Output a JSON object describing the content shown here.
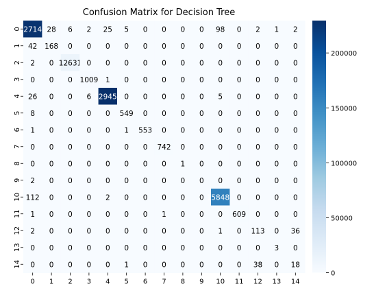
{
  "chart_data": {
    "type": "heatmap",
    "title": "Confusion Matrix for Decision Tree",
    "xlabel": "",
    "ylabel": "",
    "x_categories": [
      "0",
      "1",
      "2",
      "3",
      "4",
      "5",
      "6",
      "7",
      "8",
      "9",
      "10",
      "11",
      "12",
      "13",
      "14"
    ],
    "y_categories": [
      "0",
      "1",
      "2",
      "3",
      "4",
      "5",
      "6",
      "7",
      "8",
      "9",
      "10",
      "11",
      "12",
      "13",
      "14"
    ],
    "values": [
      [
        227140,
        28,
        6,
        2,
        25,
        5,
        0,
        0,
        0,
        0,
        98,
        0,
        2,
        1,
        2
      ],
      [
        42,
        168,
        0,
        0,
        0,
        0,
        0,
        0,
        0,
        0,
        0,
        0,
        0,
        0,
        0
      ],
      [
        2,
        0,
        12631,
        0,
        0,
        0,
        0,
        0,
        0,
        0,
        0,
        0,
        0,
        0,
        0
      ],
      [
        0,
        0,
        0,
        1009,
        1,
        0,
        0,
        0,
        0,
        0,
        0,
        0,
        0,
        0,
        0
      ],
      [
        26,
        0,
        0,
        6,
        229450,
        0,
        0,
        0,
        0,
        0,
        5,
        0,
        0,
        0,
        0
      ],
      [
        8,
        0,
        0,
        0,
        0,
        549,
        0,
        0,
        0,
        0,
        0,
        0,
        0,
        0,
        0
      ],
      [
        1,
        0,
        0,
        0,
        0,
        1,
        553,
        0,
        0,
        0,
        0,
        0,
        0,
        0,
        0
      ],
      [
        0,
        0,
        0,
        0,
        0,
        0,
        0,
        742,
        0,
        0,
        0,
        0,
        0,
        0,
        0
      ],
      [
        0,
        0,
        0,
        0,
        0,
        0,
        0,
        0,
        1,
        0,
        0,
        0,
        0,
        0,
        0
      ],
      [
        2,
        0,
        0,
        0,
        0,
        0,
        0,
        0,
        0,
        0,
        0,
        0,
        0,
        0,
        0
      ],
      [
        112,
        0,
        0,
        0,
        2,
        0,
        0,
        0,
        0,
        0,
        158480,
        0,
        0,
        0,
        0
      ],
      [
        1,
        0,
        0,
        0,
        0,
        0,
        0,
        1,
        0,
        0,
        0,
        609,
        0,
        0,
        0
      ],
      [
        2,
        0,
        0,
        0,
        0,
        0,
        0,
        0,
        0,
        0,
        1,
        0,
        113,
        0,
        36
      ],
      [
        0,
        0,
        0,
        0,
        0,
        0,
        0,
        0,
        0,
        0,
        0,
        0,
        0,
        3,
        0
      ],
      [
        0,
        0,
        0,
        0,
        0,
        1,
        0,
        0,
        0,
        0,
        0,
        0,
        38,
        0,
        18
      ]
    ],
    "colorbar": {
      "min": 0,
      "max": 229450,
      "ticks": [
        0,
        50000,
        100000,
        150000,
        200000
      ],
      "colormap": "Blues"
    },
    "colors": {
      "low": "#f7fbff",
      "high": "#08306b"
    },
    "grid": false
  }
}
